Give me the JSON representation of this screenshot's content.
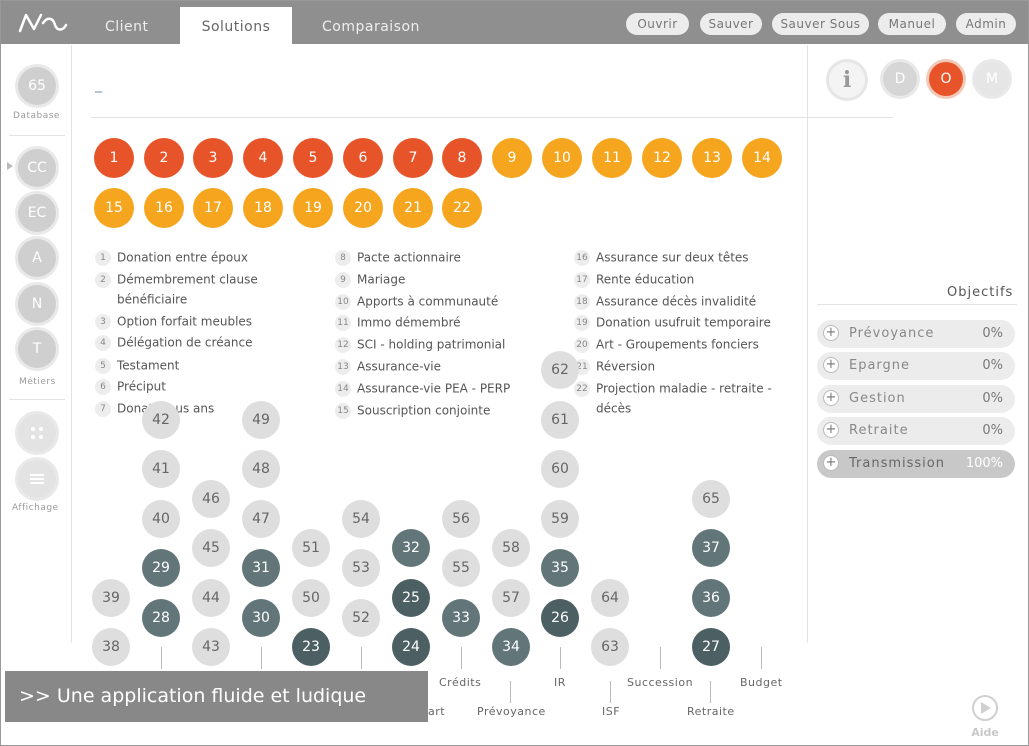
{
  "topbar": {
    "tabs": [
      {
        "label": "Client",
        "active": false
      },
      {
        "label": "Solutions",
        "active": true
      },
      {
        "label": "Comparaison",
        "active": false
      }
    ],
    "buttons": [
      "Ouvrir",
      "Sauver",
      "Sauver Sous",
      "Manuel",
      "Admin"
    ]
  },
  "sidebar": {
    "database_count": "65",
    "database_label": "Database",
    "metiers": [
      "CC",
      "EC",
      "A",
      "N",
      "T"
    ],
    "metiers_label": "Métiers",
    "affichage_label": "Affichage"
  },
  "top_right": {
    "info": "i",
    "modes": [
      "D",
      "O",
      "M"
    ],
    "active_mode": "O"
  },
  "main": {
    "input_value": "_",
    "solutions_red": [
      "1",
      "2",
      "3",
      "4",
      "5",
      "6",
      "7",
      "8"
    ],
    "solutions_amber": [
      "9",
      "10",
      "11",
      "12",
      "13",
      "14",
      "15",
      "16",
      "17",
      "18",
      "19",
      "20",
      "21",
      "22"
    ],
    "legend_col1": [
      {
        "n": "1",
        "text": "Donation entre époux"
      },
      {
        "n": "2",
        "text": "Démembrement clause"
      },
      {
        "n": "",
        "text": "bénéficiaire"
      },
      {
        "n": "3",
        "text": "Option forfait meubles"
      },
      {
        "n": "4",
        "text": "Délégation de créance"
      },
      {
        "n": "5",
        "text": "Testament"
      },
      {
        "n": "6",
        "text": "Préciput"
      },
      {
        "n": "7",
        "text": "Donation us ans"
      }
    ],
    "legend_col2": [
      {
        "n": "8",
        "text": "Pacte actionnaire"
      },
      {
        "n": "9",
        "text": "Mariage"
      },
      {
        "n": "10",
        "text": "Apports à communauté"
      },
      {
        "n": "11",
        "text": "Immo démembré"
      },
      {
        "n": "12",
        "text": "SCI - holding patrimonial"
      },
      {
        "n": "13",
        "text": "Assurance-vie"
      },
      {
        "n": "14",
        "text": "Assurance-vie PEA - PERP"
      },
      {
        "n": "15",
        "text": "Souscription conjointe"
      }
    ],
    "legend_col3": [
      {
        "n": "16",
        "text": "Assurance sur deux têtes"
      },
      {
        "n": "17",
        "text": "Rente éducation"
      },
      {
        "n": "18",
        "text": "Assurance décès invalidité"
      },
      {
        "n": "19",
        "text": "Donation usufruit temporaire"
      },
      {
        "n": "20",
        "text": "Art - Groupements fonciers"
      },
      {
        "n": "21",
        "text": "Réversion"
      },
      {
        "n": "22",
        "text": "Projection maladie - retraite -"
      },
      {
        "n": "",
        "text": "décès"
      }
    ],
    "bubbles": [
      {
        "v": "42",
        "s": "light"
      },
      {
        "v": "41",
        "s": "light"
      },
      {
        "v": "40",
        "s": "light"
      },
      {
        "v": "29",
        "s": "dark"
      },
      {
        "v": "28",
        "s": "dark"
      },
      {
        "v": "39",
        "s": "light"
      },
      {
        "v": "38",
        "s": "light"
      },
      {
        "v": "46",
        "s": "light"
      },
      {
        "v": "45",
        "s": "light"
      },
      {
        "v": "44",
        "s": "light"
      },
      {
        "v": "43",
        "s": "light"
      },
      {
        "v": "49",
        "s": "light"
      },
      {
        "v": "48",
        "s": "light"
      },
      {
        "v": "47",
        "s": "light"
      },
      {
        "v": "31",
        "s": "dark"
      },
      {
        "v": "30",
        "s": "dark"
      },
      {
        "v": "51",
        "s": "light"
      },
      {
        "v": "50",
        "s": "light"
      },
      {
        "v": "23",
        "s": "darker"
      },
      {
        "v": "54",
        "s": "light"
      },
      {
        "v": "53",
        "s": "light"
      },
      {
        "v": "52",
        "s": "light"
      },
      {
        "v": "32",
        "s": "dark"
      },
      {
        "v": "25",
        "s": "darker"
      },
      {
        "v": "24",
        "s": "darker"
      },
      {
        "v": "56",
        "s": "light"
      },
      {
        "v": "55",
        "s": "light"
      },
      {
        "v": "33",
        "s": "dark"
      },
      {
        "v": "58",
        "s": "light"
      },
      {
        "v": "57",
        "s": "light"
      },
      {
        "v": "34",
        "s": "dark"
      },
      {
        "v": "62",
        "s": "light"
      },
      {
        "v": "61",
        "s": "light"
      },
      {
        "v": "60",
        "s": "light"
      },
      {
        "v": "59",
        "s": "light"
      },
      {
        "v": "35",
        "s": "dark"
      },
      {
        "v": "26",
        "s": "darker"
      },
      {
        "v": "64",
        "s": "light"
      },
      {
        "v": "63",
        "s": "light"
      },
      {
        "v": "65",
        "s": "light"
      },
      {
        "v": "37",
        "s": "dark"
      },
      {
        "v": "36",
        "s": "dark"
      },
      {
        "v": "27",
        "s": "darker"
      }
    ],
    "categories_top": [
      "Crédits",
      "IR",
      "Succession",
      "Budget"
    ],
    "categories_bottom": [
      "art",
      "Prévoyance",
      "ISF",
      "Retraite"
    ]
  },
  "objectifs": {
    "title": "Objectifs",
    "items": [
      {
        "label": "Prévoyance",
        "pct": "0%",
        "active": false
      },
      {
        "label": "Epargne",
        "pct": "0%",
        "active": false
      },
      {
        "label": "Gestion",
        "pct": "0%",
        "active": false
      },
      {
        "label": "Retraite",
        "pct": "0%",
        "active": false
      },
      {
        "label": "Transmission",
        "pct": "100%",
        "active": true
      }
    ]
  },
  "banner": ">> Une application fluide et ludique",
  "aide_label": "Aide",
  "colors": {
    "red": "#e8542a",
    "amber": "#f6a51e",
    "dark": "#62767a",
    "darker": "#4c5f63",
    "topbar": "#8f8f8f"
  }
}
